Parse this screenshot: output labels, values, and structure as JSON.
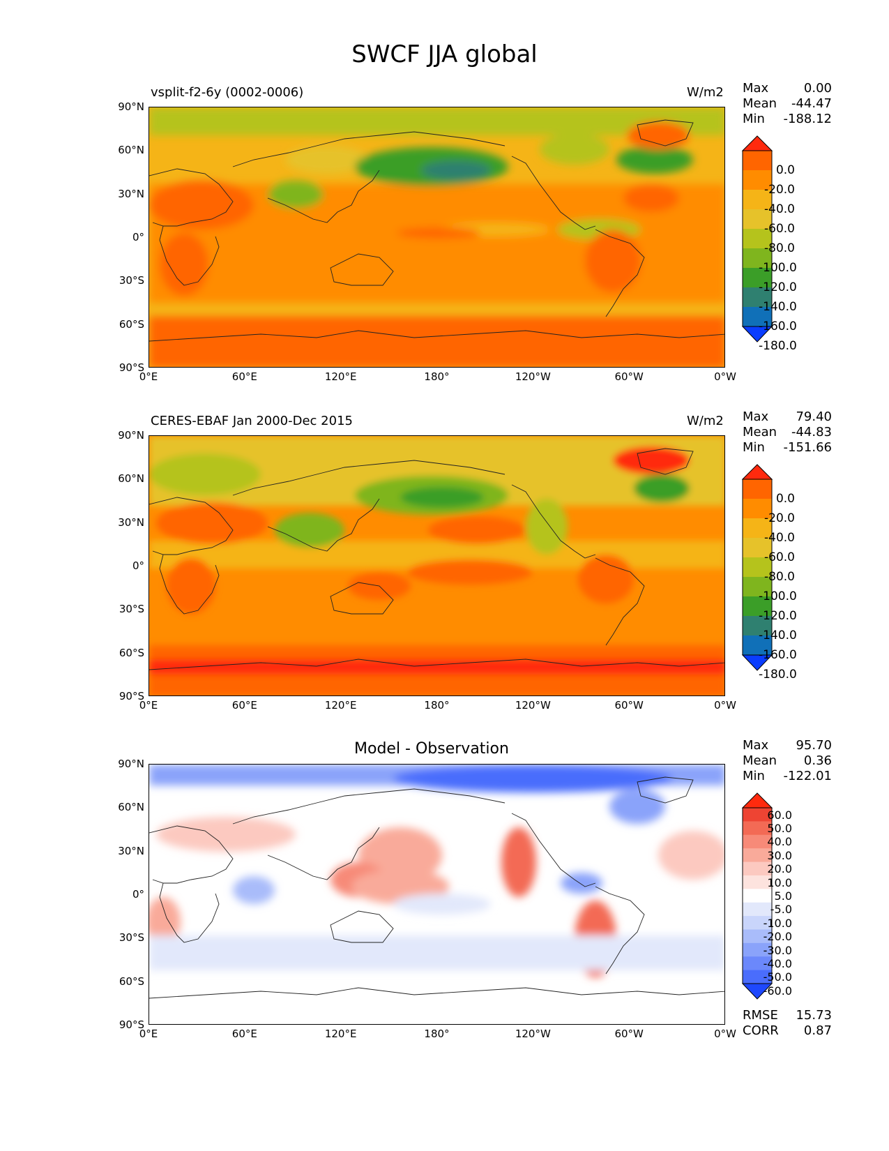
{
  "title": "SWCF JJA global",
  "x_ticks": [
    "0°E",
    "60°E",
    "120°E",
    "180°",
    "120°W",
    "60°W",
    "0°W"
  ],
  "y_ticks": [
    "90°N",
    "60°N",
    "30°N",
    "0°",
    "30°S",
    "60°S",
    "90°S"
  ],
  "panels": [
    {
      "left_title": "vsplit-f2-6y (0002-0006)",
      "center_title": "",
      "units": "W/m2",
      "stats": {
        "max_label": "Max",
        "max": "0.00",
        "mean_label": "Mean",
        "mean": "-44.47",
        "min_label": "Min",
        "min": "-188.12"
      },
      "colorbar": {
        "labels": [
          "0.0",
          "-20.0",
          "-40.0",
          "-60.0",
          "-80.0",
          "-100.0",
          "-120.0",
          "-140.0",
          "-160.0",
          "-180.0"
        ]
      }
    },
    {
      "left_title": "CERES-EBAF Jan 2000-Dec 2015",
      "center_title": "",
      "units": "W/m2",
      "stats": {
        "max_label": "Max",
        "max": "79.40",
        "mean_label": "Mean",
        "mean": "-44.83",
        "min_label": "Min",
        "min": "-151.66"
      },
      "colorbar": {
        "labels": [
          "0.0",
          "-20.0",
          "-40.0",
          "-60.0",
          "-80.0",
          "-100.0",
          "-120.0",
          "-140.0",
          "-160.0",
          "-180.0"
        ]
      }
    },
    {
      "left_title": "",
      "center_title": "Model - Observation",
      "units": "",
      "stats": {
        "max_label": "Max",
        "max": "95.70",
        "mean_label": "Mean",
        "mean": "0.36",
        "min_label": "Min",
        "min": "-122.01"
      },
      "colorbar": {
        "labels": [
          "60.0",
          "50.0",
          "40.0",
          "30.0",
          "20.0",
          "10.0",
          "5.0",
          "-5.0",
          "-10.0",
          "-20.0",
          "-30.0",
          "-40.0",
          "-50.0",
          "-60.0"
        ]
      },
      "rmse_label": "RMSE",
      "rmse": "15.73",
      "corr_label": "CORR",
      "corr": "0.87"
    }
  ],
  "colors": {
    "field_scale": [
      "#ff2a0e",
      "#ff6500",
      "#ff8c00",
      "#f5b417",
      "#e6c22a",
      "#b5c31c",
      "#7fb51e",
      "#3b9e28",
      "#2f8070",
      "#1070b8",
      "#0a3dff"
    ],
    "diff_scale": [
      "#ff2a0e",
      "#ee4433",
      "#f36a55",
      "#f78a78",
      "#f9aa9a",
      "#fcc9c0",
      "#fde3de",
      "#ffffff",
      "#e2e8fb",
      "#c9d5fb",
      "#a9bcfa",
      "#8aa3fa",
      "#6b88fb",
      "#4a6dfc",
      "#1e48fe"
    ]
  }
}
